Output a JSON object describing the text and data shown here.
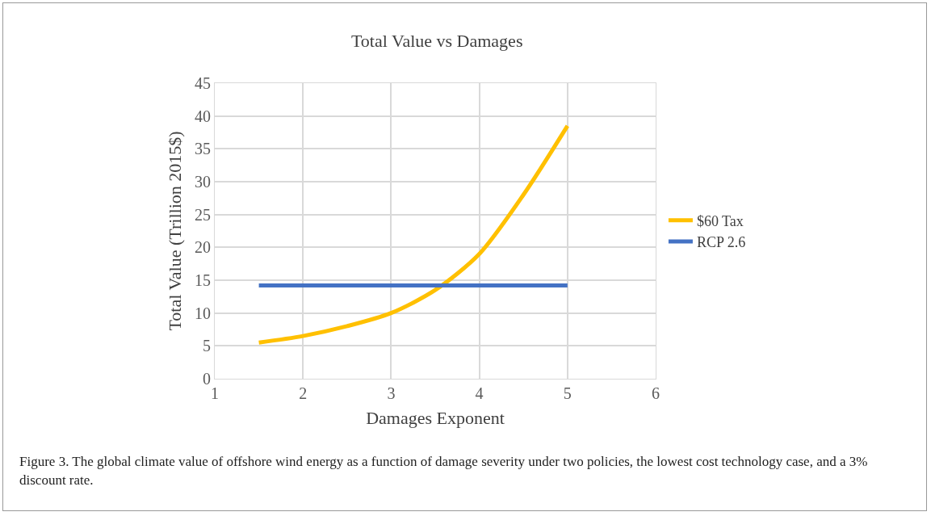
{
  "chart_data": {
    "type": "line",
    "title": "Total Value vs Damages",
    "xlabel": "Damages Exponent",
    "ylabel": "Total Value (Trillion 2015$)",
    "xlim": [
      1,
      6
    ],
    "xticks": [
      1,
      2,
      3,
      4,
      5,
      6
    ],
    "ylim": [
      0,
      45
    ],
    "yticks": [
      0,
      5,
      10,
      15,
      20,
      25,
      30,
      35,
      40,
      45
    ],
    "grid": true,
    "legend": "right",
    "marker": "none",
    "line_style": "solid",
    "x": [
      1.5,
      2,
      2.5,
      3,
      3.5,
      4,
      4.5,
      5
    ],
    "series": [
      {
        "name": "$60 Tax",
        "color": "#ffc000",
        "values": [
          5.5,
          6.5,
          8,
          10,
          13.5,
          19,
          28,
          38.5
        ]
      },
      {
        "name": "RCP 2.6",
        "color": "#4472c4",
        "values": [
          14.2,
          14.2,
          14.2,
          14.2,
          14.2,
          14.2,
          14.2,
          14.2
        ]
      }
    ],
    "annotations": [
      "Figure 3. The global climate value of offshore wind energy as a function of damage severity under two policies, the lowest cost technology case, and a 3% discount rate."
    ]
  }
}
